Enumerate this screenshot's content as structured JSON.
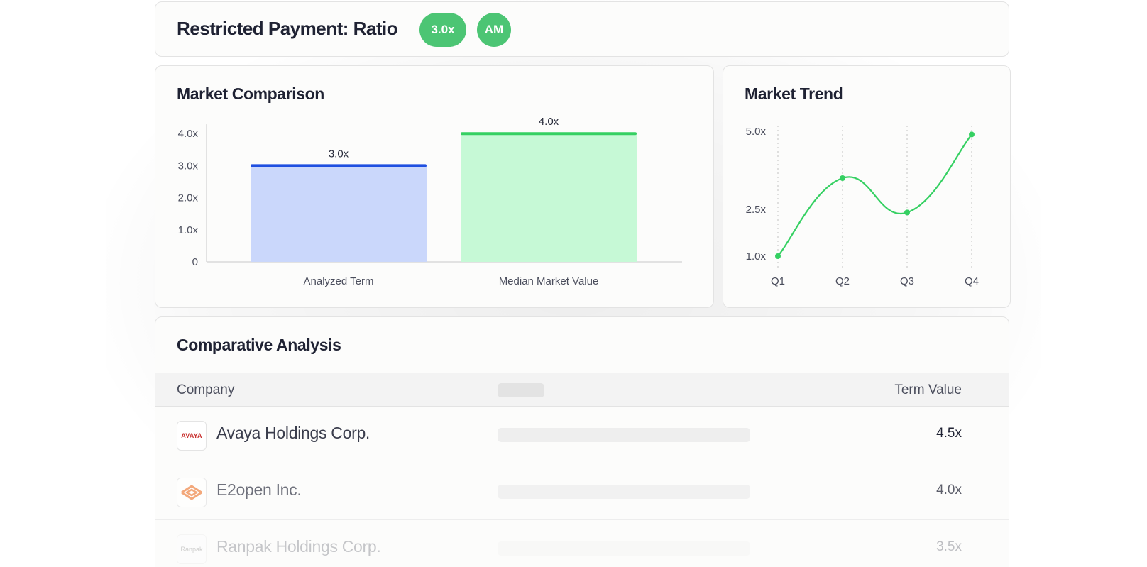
{
  "header": {
    "title": "Restricted Payment: Ratio",
    "ratio_badge": "3.0x",
    "initials_badge": "AM"
  },
  "market_comparison": {
    "title": "Market Comparison"
  },
  "market_trend": {
    "title": "Market Trend"
  },
  "chart_data": [
    {
      "type": "bar",
      "title": "Market Comparison",
      "categories": [
        "Analyzed Term",
        "Median Market Value"
      ],
      "values": [
        3.0,
        4.0
      ],
      "data_labels": [
        "3.0x",
        "4.0x"
      ],
      "y_ticks": [
        0,
        1,
        2,
        3,
        4
      ],
      "y_tick_labels": [
        "0",
        "1.0x",
        "2.0x",
        "3.0x",
        "4.0x"
      ],
      "ylim": [
        0,
        4.2
      ],
      "colors": {
        "Analyzed Term": {
          "fill": "#cad7fb",
          "top": "#1f4fe0"
        },
        "Median Market Value": {
          "fill": "#c6f9d6",
          "top": "#35d062"
        }
      },
      "grid": false
    },
    {
      "type": "line",
      "title": "Market Trend",
      "categories": [
        "Q1",
        "Q2",
        "Q3",
        "Q4"
      ],
      "values": [
        1.0,
        3.5,
        2.4,
        4.9
      ],
      "y_ticks": [
        1.0,
        2.5,
        5.0
      ],
      "y_tick_labels": [
        "1.0x",
        "2.5x",
        "5.0x"
      ],
      "ylim": [
        1.0,
        5.0
      ],
      "color": "#35d062",
      "grid": "vertical-dotted"
    }
  ],
  "table": {
    "title": "Comparative Analysis",
    "columns": {
      "company": "Company",
      "value": "Term Value"
    },
    "rows": [
      {
        "company": "Avaya Holdings Corp.",
        "logo": "AVAYA",
        "value": "4.5x"
      },
      {
        "company": "E2open Inc.",
        "logo": "e2open-chevron-icon",
        "value": "4.0x"
      },
      {
        "company": "Ranpak Holdings Corp.",
        "logo": "Ranpak",
        "value": "3.5x"
      }
    ]
  },
  "colors": {
    "accent_green": "#4cc574",
    "line_green": "#35d062",
    "analyzed_blue": "#1f4fe0"
  }
}
